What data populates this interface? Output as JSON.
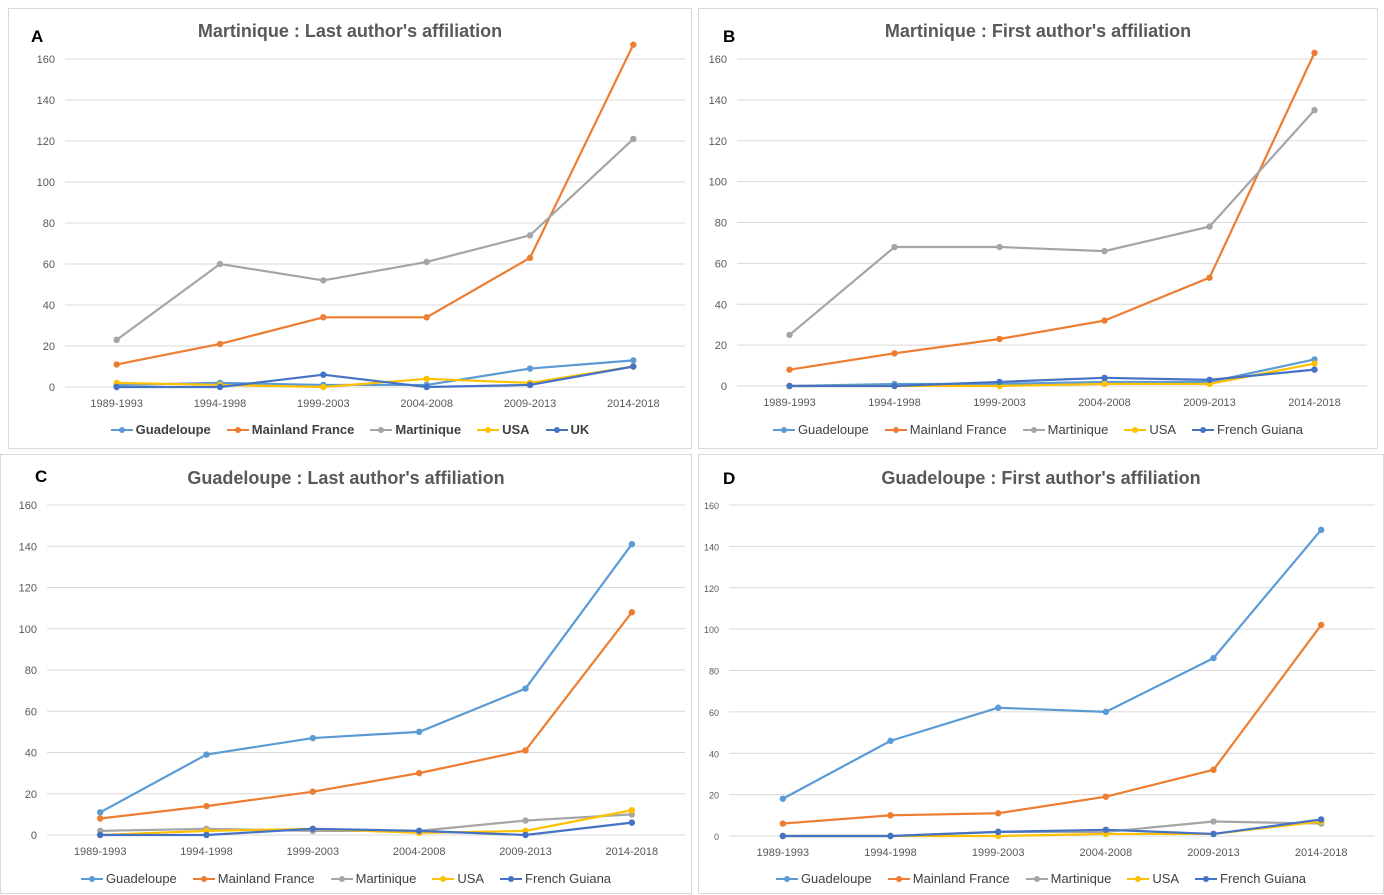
{
  "colors": {
    "Guadeloupe": "#5b9bd5",
    "Mainland France": "#ed7d31",
    "Martinique": "#a5a5a5",
    "USA": "#ffc000",
    "UK": "#4472c4",
    "French Guiana": "#4472c4"
  },
  "chart_data": [
    {
      "panel": "A",
      "type": "line",
      "title": "Martinique : Last author's affiliation",
      "categories": [
        "1989-1993",
        "1994-1998",
        "1999-2003",
        "2004-2008",
        "2009-2013",
        "2014-2018"
      ],
      "ylim": [
        0,
        160
      ],
      "yticks": [
        0,
        20,
        40,
        60,
        80,
        100,
        120,
        140,
        160
      ],
      "grid": true,
      "legend": "bottom",
      "series": [
        {
          "name": "Guadeloupe",
          "values": [
            1,
            2,
            1,
            1,
            9,
            13
          ]
        },
        {
          "name": "Mainland France",
          "values": [
            11,
            21,
            34,
            34,
            63,
            167
          ]
        },
        {
          "name": "Martinique",
          "values": [
            23,
            60,
            52,
            61,
            74,
            121
          ]
        },
        {
          "name": "USA",
          "values": [
            2,
            1,
            0,
            4,
            2,
            10
          ]
        },
        {
          "name": "UK",
          "values": [
            0,
            0,
            6,
            0,
            1,
            10
          ]
        }
      ]
    },
    {
      "panel": "B",
      "type": "line",
      "title": "Martinique : First author's affiliation",
      "categories": [
        "1989-1993",
        "1994-1998",
        "1999-2003",
        "2004-2008",
        "2009-2013",
        "2014-2018"
      ],
      "ylim": [
        0,
        160
      ],
      "yticks": [
        0,
        20,
        40,
        60,
        80,
        100,
        120,
        140,
        160
      ],
      "grid": true,
      "legend": "bottom",
      "series": [
        {
          "name": "Guadeloupe",
          "values": [
            0,
            1,
            1,
            2,
            2,
            13
          ]
        },
        {
          "name": "Mainland France",
          "values": [
            8,
            16,
            23,
            32,
            53,
            163
          ]
        },
        {
          "name": "Martinique",
          "values": [
            25,
            68,
            68,
            66,
            78,
            135
          ]
        },
        {
          "name": "USA",
          "values": [
            0,
            0,
            0,
            1,
            1,
            11
          ]
        },
        {
          "name": "French Guiana",
          "values": [
            0,
            0,
            2,
            4,
            3,
            8
          ]
        }
      ]
    },
    {
      "panel": "C",
      "type": "line",
      "title": "Guadeloupe : Last author's affiliation",
      "categories": [
        "1989-1993",
        "1994-1998",
        "1999-2003",
        "2004-2008",
        "2009-2013",
        "2014-2018"
      ],
      "ylim": [
        0,
        160
      ],
      "yticks": [
        0,
        20,
        40,
        60,
        80,
        100,
        120,
        140,
        160
      ],
      "grid": true,
      "legend": "bottom",
      "series": [
        {
          "name": "Guadeloupe",
          "values": [
            11,
            39,
            47,
            50,
            71,
            141
          ]
        },
        {
          "name": "Mainland France",
          "values": [
            8,
            14,
            21,
            30,
            41,
            108
          ]
        },
        {
          "name": "Martinique",
          "values": [
            2,
            3,
            2,
            2,
            7,
            10
          ]
        },
        {
          "name": "USA",
          "values": [
            0,
            2,
            3,
            1,
            2,
            12
          ]
        },
        {
          "name": "French Guiana",
          "values": [
            0,
            0,
            3,
            2,
            0,
            6
          ]
        }
      ]
    },
    {
      "panel": "D",
      "type": "line",
      "title": "Guadeloupe : First author's affiliation",
      "categories": [
        "1989-1993",
        "1994-1998",
        "1999-2003",
        "2004-2008",
        "2009-2013",
        "2014-2018"
      ],
      "ylim": [
        0,
        160
      ],
      "yticks": [
        0,
        20,
        40,
        60,
        80,
        100,
        120,
        140,
        160
      ],
      "grid": true,
      "legend": "bottom",
      "series": [
        {
          "name": "Guadeloupe",
          "values": [
            18,
            46,
            62,
            60,
            86,
            148
          ]
        },
        {
          "name": "Mainland France",
          "values": [
            6,
            10,
            11,
            19,
            32,
            102
          ]
        },
        {
          "name": "Martinique",
          "values": [
            0,
            0,
            2,
            2,
            7,
            6
          ]
        },
        {
          "name": "USA",
          "values": [
            0,
            0,
            0,
            1,
            1,
            7
          ]
        },
        {
          "name": "French Guiana",
          "values": [
            0,
            0,
            2,
            3,
            1,
            8
          ]
        }
      ]
    }
  ]
}
